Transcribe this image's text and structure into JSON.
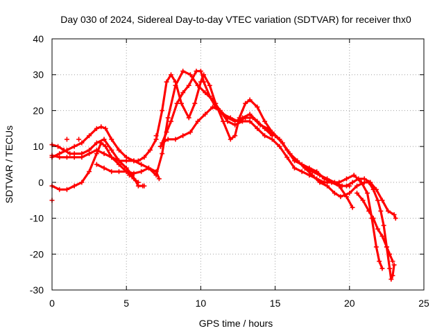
{
  "chart_data": {
    "type": "scatter",
    "title": "Day 030 of 2024, Sidereal Day-to-day VTEC variation (SDTVAR) for receiver thx0",
    "xlabel": "GPS time / hours",
    "ylabel": "SDTVAR / TECUs",
    "xlim": [
      0,
      25
    ],
    "ylim": [
      -30,
      40
    ],
    "xticks": [
      0,
      5,
      10,
      15,
      20,
      25
    ],
    "yticks": [
      -30,
      -20,
      -10,
      0,
      10,
      20,
      30,
      40
    ],
    "grid": true,
    "marker": "plus",
    "color": "#ff0000",
    "series": [
      {
        "name": "track-1",
        "points": [
          [
            0,
            -1
          ],
          [
            0.5,
            -2
          ],
          [
            1,
            -2
          ],
          [
            1.5,
            -1
          ],
          [
            2,
            0
          ],
          [
            2.5,
            3
          ],
          [
            3,
            8
          ],
          [
            3.3,
            11
          ],
          [
            3.6,
            10
          ],
          [
            4,
            7
          ],
          [
            4.5,
            6
          ],
          [
            5,
            6
          ],
          [
            5.5,
            6
          ],
          [
            6,
            5
          ],
          [
            6.5,
            4
          ],
          [
            7,
            2
          ],
          [
            7.4,
            8
          ],
          [
            7.8,
            18
          ],
          [
            8.3,
            27
          ],
          [
            8.8,
            31
          ],
          [
            9.3,
            30
          ],
          [
            9.8,
            27
          ],
          [
            10.3,
            25
          ],
          [
            10.8,
            23
          ],
          [
            11.3,
            20
          ],
          [
            11.8,
            17
          ],
          [
            12.3,
            16
          ],
          [
            12.8,
            17
          ],
          [
            13.3,
            17
          ],
          [
            13.8,
            15
          ],
          [
            14.3,
            13
          ],
          [
            14.8,
            12
          ],
          [
            15.3,
            10
          ],
          [
            15.8,
            7
          ],
          [
            16.3,
            4
          ],
          [
            16.8,
            3
          ],
          [
            17.3,
            2
          ],
          [
            17.8,
            1
          ],
          [
            18.3,
            0
          ],
          [
            18.8,
            0
          ],
          [
            19.3,
            -1
          ],
          [
            19.8,
            -4
          ],
          [
            20.2,
            -7
          ]
        ]
      },
      {
        "name": "track-2",
        "points": [
          [
            0,
            7
          ],
          [
            0.5,
            8
          ],
          [
            1,
            9
          ],
          [
            1.5,
            10
          ],
          [
            2,
            11
          ],
          [
            2.5,
            13
          ],
          [
            3,
            15
          ],
          [
            3.3,
            15.5
          ],
          [
            3.6,
            15
          ],
          [
            4,
            12
          ],
          [
            4.5,
            9
          ],
          [
            5,
            7
          ],
          [
            5.5,
            6
          ],
          [
            5.8,
            6
          ],
          [
            6.2,
            7
          ],
          [
            6.6,
            9
          ],
          [
            7,
            12
          ],
          [
            7.4,
            20
          ],
          [
            7.7,
            28
          ],
          [
            8,
            30
          ],
          [
            8.3,
            28
          ],
          [
            8.7,
            22
          ],
          [
            9.2,
            18
          ],
          [
            9.6,
            22
          ],
          [
            10,
            28
          ],
          [
            10.2,
            30
          ],
          [
            10.6,
            27
          ],
          [
            11,
            22
          ],
          [
            11.5,
            17
          ],
          [
            12,
            12
          ],
          [
            12.3,
            13
          ],
          [
            12.6,
            18
          ],
          [
            13,
            22
          ],
          [
            13.3,
            23
          ],
          [
            13.8,
            21
          ],
          [
            14.3,
            17
          ],
          [
            14.8,
            14
          ],
          [
            15.3,
            12
          ],
          [
            15.8,
            9
          ],
          [
            16.3,
            6
          ],
          [
            16.8,
            5
          ],
          [
            17.3,
            4
          ],
          [
            17.8,
            3
          ],
          [
            18.3,
            1
          ],
          [
            18.8,
            0
          ],
          [
            19.3,
            0
          ],
          [
            19.8,
            1
          ],
          [
            20.3,
            2
          ],
          [
            20.8,
            0
          ],
          [
            21.2,
            -3
          ],
          [
            21.5,
            -10
          ],
          [
            21.8,
            -18
          ],
          [
            22,
            -22
          ],
          [
            22.2,
            -24
          ]
        ]
      },
      {
        "name": "track-3",
        "points": [
          [
            0,
            10.5
          ],
          [
            0.4,
            10
          ],
          [
            0.8,
            9
          ],
          [
            1.2,
            8
          ],
          [
            1.5,
            8
          ],
          [
            2,
            8
          ],
          [
            2.5,
            9
          ],
          [
            3,
            11
          ],
          [
            3.5,
            12
          ],
          [
            4,
            9
          ],
          [
            4.5,
            6
          ],
          [
            5,
            4
          ],
          [
            5.4,
            2
          ],
          [
            5.8,
            -1
          ],
          [
            6.1,
            -1
          ]
        ]
      },
      {
        "name": "track-4",
        "points": [
          [
            0,
            7.5
          ],
          [
            0.5,
            7
          ],
          [
            1,
            7
          ],
          [
            1.5,
            7
          ],
          [
            2,
            7
          ],
          [
            2.5,
            8
          ],
          [
            3,
            9
          ],
          [
            3.5,
            8
          ],
          [
            4,
            7
          ],
          [
            4.5,
            5
          ],
          [
            5,
            3
          ],
          [
            5.5,
            1
          ],
          [
            5.8,
            0
          ]
        ]
      },
      {
        "name": "track-5",
        "points": [
          [
            3,
            5
          ],
          [
            3.5,
            4
          ],
          [
            4,
            3
          ],
          [
            4.5,
            3
          ],
          [
            5,
            3
          ],
          [
            5.5,
            2.5
          ],
          [
            6,
            3
          ],
          [
            6.5,
            4
          ],
          [
            7,
            3
          ],
          [
            7.2,
            1
          ]
        ]
      },
      {
        "name": "track-6",
        "points": [
          [
            7.3,
            10
          ],
          [
            7.7,
            14
          ],
          [
            8,
            17
          ],
          [
            8.4,
            22
          ],
          [
            8.8,
            25
          ],
          [
            9.2,
            27
          ],
          [
            9.7,
            31
          ],
          [
            10,
            31
          ],
          [
            10.2,
            28
          ],
          [
            10.6,
            24
          ],
          [
            11,
            21
          ],
          [
            11.5,
            19
          ],
          [
            12,
            18
          ],
          [
            12.5,
            17
          ],
          [
            13,
            18
          ],
          [
            13.5,
            18
          ],
          [
            14,
            16
          ],
          [
            14.5,
            15
          ],
          [
            15,
            13
          ],
          [
            15.5,
            11
          ],
          [
            16,
            8
          ],
          [
            16.5,
            6
          ],
          [
            17,
            4
          ],
          [
            17.5,
            3
          ],
          [
            18,
            2
          ],
          [
            18.5,
            1
          ],
          [
            19,
            0
          ],
          [
            19.5,
            -1
          ],
          [
            20,
            -1
          ]
        ]
      },
      {
        "name": "track-7",
        "points": [
          [
            7.4,
            11
          ],
          [
            7.8,
            12
          ],
          [
            8.3,
            12
          ],
          [
            8.8,
            13
          ],
          [
            9.3,
            14
          ],
          [
            9.8,
            17
          ],
          [
            10.3,
            19
          ],
          [
            10.8,
            21
          ],
          [
            11.3,
            20
          ],
          [
            11.8,
            18
          ],
          [
            12.3,
            17
          ],
          [
            12.8,
            18
          ],
          [
            13.3,
            19
          ],
          [
            13.8,
            17
          ],
          [
            14.3,
            15
          ],
          [
            14.8,
            13
          ]
        ]
      },
      {
        "name": "track-8",
        "points": [
          [
            17,
            4
          ],
          [
            17.5,
            2
          ],
          [
            18,
            0
          ],
          [
            18.5,
            -1
          ],
          [
            19,
            -3
          ],
          [
            19.4,
            -4
          ],
          [
            20,
            -3
          ],
          [
            20.5,
            -1
          ],
          [
            21,
            0
          ],
          [
            21.3,
            0
          ],
          [
            21.6,
            -2
          ],
          [
            21.9,
            -5
          ],
          [
            22.1,
            -8
          ],
          [
            22.3,
            -12
          ],
          [
            22.5,
            -18
          ],
          [
            22.7,
            -24
          ],
          [
            22.8,
            -27
          ],
          [
            22.9,
            -26
          ],
          [
            23,
            -23
          ]
        ]
      },
      {
        "name": "track-9",
        "points": [
          [
            19.8,
            -1
          ],
          [
            20.2,
            0
          ],
          [
            20.6,
            1
          ],
          [
            21,
            1
          ],
          [
            21.4,
            0
          ],
          [
            21.8,
            -2
          ],
          [
            22.2,
            -5
          ],
          [
            22.6,
            -8
          ],
          [
            23,
            -9
          ],
          [
            23.1,
            -10
          ]
        ]
      },
      {
        "name": "track-10",
        "points": [
          [
            20.5,
            -3
          ],
          [
            20.9,
            -5
          ],
          [
            21.3,
            -8
          ],
          [
            21.6,
            -10
          ],
          [
            21.9,
            -13
          ],
          [
            22.2,
            -15
          ],
          [
            22.5,
            -18
          ],
          [
            22.7,
            -20
          ],
          [
            22.9,
            -22
          ]
        ]
      }
    ],
    "stray_points": [
      [
        0,
        -5
      ],
      [
        1,
        12
      ],
      [
        1.8,
        12
      ],
      [
        7,
        13
      ],
      [
        7.3,
        10
      ],
      [
        5.2,
        2
      ],
      [
        6.2,
        -1
      ]
    ]
  }
}
